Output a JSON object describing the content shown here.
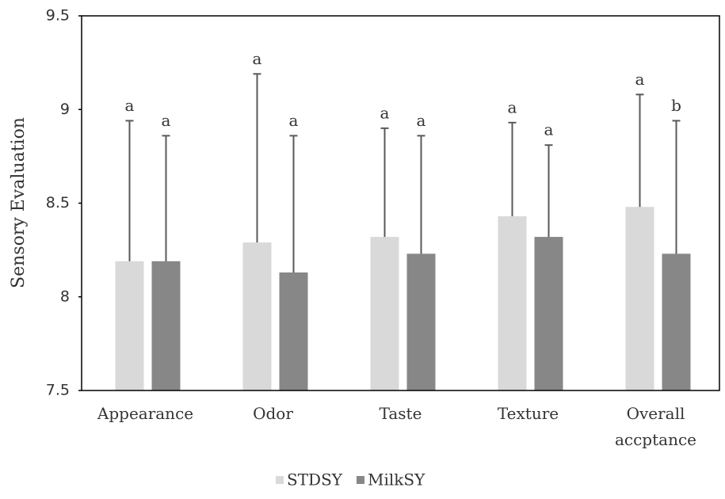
{
  "chart_data": {
    "type": "bar",
    "y_label": "Sensory Evaluation",
    "categories": [
      "Appearance",
      "Odor",
      "Taste",
      "Texture",
      "Overall accptance"
    ],
    "series": [
      {
        "name": "STDSY",
        "color": "#d9d9d9",
        "values": [
          8.19,
          8.29,
          8.32,
          8.43,
          8.48
        ],
        "errors": [
          0.75,
          0.9,
          0.58,
          0.5,
          0.6
        ],
        "labels": [
          "a",
          "a",
          "a",
          "a",
          "a"
        ]
      },
      {
        "name": "MilkSY",
        "color": "#878787",
        "values": [
          8.19,
          8.13,
          8.23,
          8.32,
          8.23
        ],
        "errors": [
          0.67,
          0.73,
          0.63,
          0.49,
          0.71
        ],
        "labels": [
          "a",
          "a",
          "a",
          "a",
          "b"
        ]
      }
    ],
    "ylim": [
      7.5,
      9.5
    ],
    "yticks": [
      7.5,
      8,
      8.5,
      9,
      9.5
    ],
    "legend": "bottom"
  }
}
